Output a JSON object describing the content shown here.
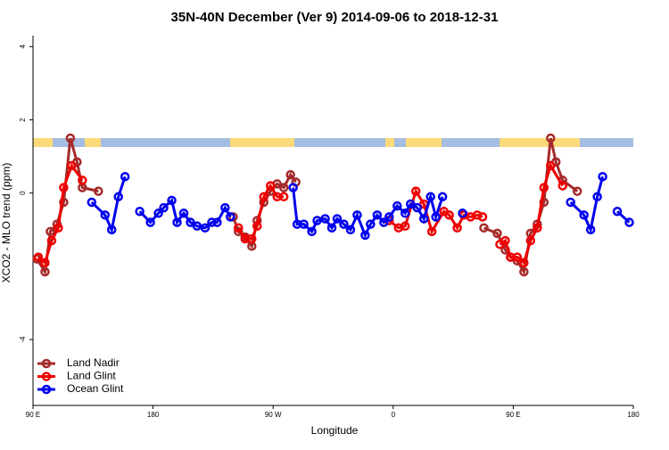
{
  "chart_data": {
    "type": "line",
    "title": "35N-40N December (Ver 9)   2014-09-06 to 2018-12-31",
    "xlabel": "Longitude",
    "ylabel": "XCO2 - MLO trend (ppm)",
    "xlim": [
      90,
      540
    ],
    "xticks": [
      {
        "value": 90,
        "label": "90 E"
      },
      180,
      {
        "value": 270,
        "label": "90 W"
      },
      {
        "value": 360,
        "label": "0"
      },
      {
        "value": 450,
        "label": "90 E"
      },
      {
        "value": 540,
        "label": "180"
      }
    ],
    "ylim": [
      -5.8,
      4.3
    ],
    "yticks": [
      -4,
      0,
      2,
      4
    ],
    "legend": "bottom-left",
    "series": [
      {
        "name": "Land Nadir",
        "color": "#a52a2a",
        "x": [
          93,
          99,
          103,
          108,
          113,
          118,
          123,
          127,
          139,
          null,
          240,
          244,
          249,
          254,
          258,
          263,
          268,
          273,
          278,
          283,
          287,
          null,
          428,
          438,
          444,
          448,
          453,
          458,
          463,
          468,
          473,
          478,
          482,
          487,
          498
        ],
        "values": [
          -1.8,
          -2.15,
          -1.05,
          -0.85,
          -0.25,
          1.5,
          0.85,
          0.15,
          0.05,
          null,
          -0.65,
          -1.05,
          -1.2,
          -1.45,
          -0.75,
          -0.25,
          0.05,
          0.25,
          0.15,
          0.5,
          0.3,
          null,
          -0.95,
          -1.1,
          -1.55,
          -1.75,
          -1.85,
          -2.15,
          -1.1,
          -0.85,
          -0.25,
          1.5,
          0.85,
          0.35,
          0.05
        ]
      },
      {
        "name": "Land Glint",
        "color": "#ee0000",
        "x": [
          94,
          99,
          104,
          109,
          113,
          119,
          127,
          null,
          244,
          249,
          254,
          258,
          263,
          268,
          273,
          278,
          null,
          357,
          364,
          369,
          377,
          383,
          389,
          398,
          402,
          408,
          413,
          418,
          423,
          427,
          null,
          440,
          444,
          448,
          453,
          458,
          463,
          468,
          473,
          478,
          487
        ],
        "values": [
          -1.75,
          -1.9,
          -1.3,
          -0.95,
          0.15,
          0.75,
          0.35,
          null,
          -0.95,
          -1.25,
          -1.25,
          -0.9,
          -0.1,
          0.2,
          -0.1,
          -0.1,
          null,
          -0.75,
          -0.95,
          -0.9,
          0.05,
          -0.3,
          -1.05,
          -0.5,
          -0.6,
          -0.95,
          -0.6,
          -0.65,
          -0.6,
          -0.65,
          null,
          -1.4,
          -1.3,
          -1.75,
          -1.75,
          -1.9,
          -1.3,
          -0.95,
          0.15,
          0.75,
          0.2
        ]
      },
      {
        "name": "Ocean Glint",
        "color": "#0000ee",
        "x": [
          134,
          144,
          149,
          154,
          159,
          null,
          170,
          178,
          184,
          188,
          194,
          198,
          203,
          208,
          213,
          219,
          224,
          228,
          234,
          238,
          null,
          285,
          288,
          293,
          299,
          303,
          309,
          314,
          318,
          323,
          328,
          333,
          339,
          343,
          348,
          353,
          357,
          363,
          369,
          373,
          378,
          383,
          388,
          392,
          397,
          null,
          412,
          null,
          493,
          503,
          508,
          513,
          517,
          null,
          528,
          537
        ],
        "values": [
          -0.25,
          -0.6,
          -1.0,
          -0.1,
          0.45,
          null,
          -0.5,
          -0.8,
          -0.55,
          -0.4,
          -0.2,
          -0.8,
          -0.55,
          -0.8,
          -0.9,
          -0.95,
          -0.8,
          -0.8,
          -0.4,
          -0.65,
          null,
          0.15,
          -0.85,
          -0.85,
          -1.05,
          -0.75,
          -0.7,
          -0.95,
          -0.7,
          -0.85,
          -1.0,
          -0.6,
          -1.15,
          -0.85,
          -0.6,
          -0.8,
          -0.65,
          -0.35,
          -0.55,
          -0.3,
          -0.4,
          -0.7,
          -0.1,
          -0.65,
          -0.1,
          null,
          -0.55,
          null,
          -0.25,
          -0.6,
          -1.0,
          -0.1,
          0.45,
          null,
          -0.5,
          -0.8
        ]
      }
    ]
  }
}
